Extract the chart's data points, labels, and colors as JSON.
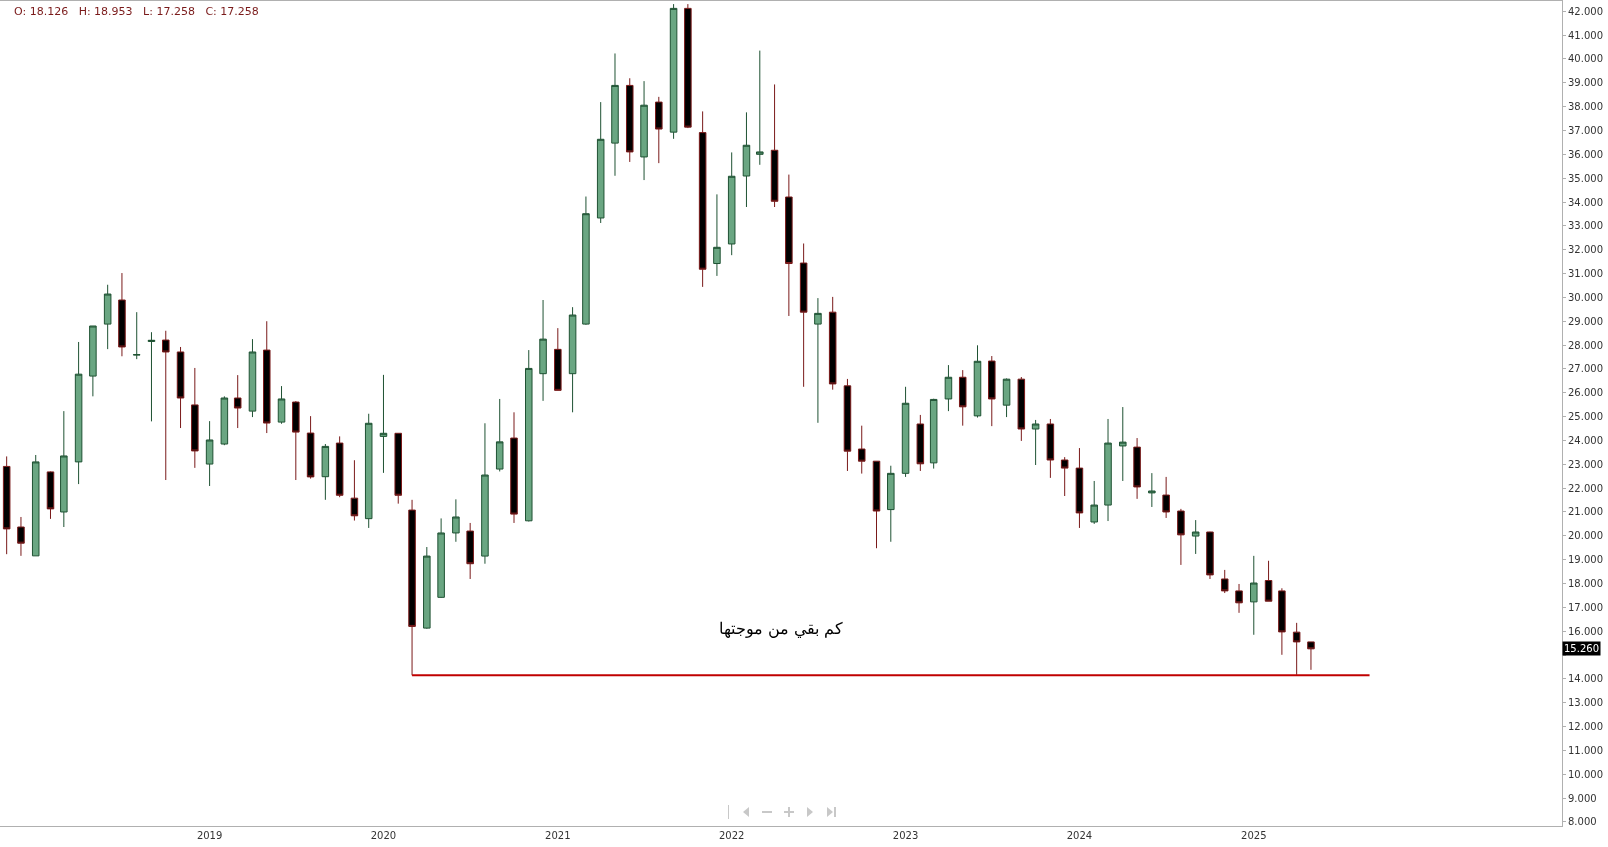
{
  "chart_data": {
    "type": "candlestick",
    "x": [
      "2017-11",
      "2017-12",
      "2018-01",
      "2018-02",
      "2018-03",
      "2018-04",
      "2018-05",
      "2018-06",
      "2018-07",
      "2018-08",
      "2018-09",
      "2018-10",
      "2018-11",
      "2018-12",
      "2019-01",
      "2019-02",
      "2019-03",
      "2019-04",
      "2019-05",
      "2019-06",
      "2019-07",
      "2019-08",
      "2019-09",
      "2019-10",
      "2019-11",
      "2019-12",
      "2020-01",
      "2020-02",
      "2020-03",
      "2020-04",
      "2020-05",
      "2020-06",
      "2020-07",
      "2020-08",
      "2020-09",
      "2020-10",
      "2020-11",
      "2020-12",
      "2021-01",
      "2021-02",
      "2021-03",
      "2021-04",
      "2021-05",
      "2021-06",
      "2021-07",
      "2021-08",
      "2021-09",
      "2021-10",
      "2021-11",
      "2021-12",
      "2022-01",
      "2022-02",
      "2022-03",
      "2022-04",
      "2022-05",
      "2022-06",
      "2022-07",
      "2022-08",
      "2022-09",
      "2022-10",
      "2022-11",
      "2022-12",
      "2023-01",
      "2023-02",
      "2023-03",
      "2023-04",
      "2023-05",
      "2023-06",
      "2023-07",
      "2023-08",
      "2023-09",
      "2023-10",
      "2023-11",
      "2023-12",
      "2024-01",
      "2024-02",
      "2024-03",
      "2024-04",
      "2024-05",
      "2024-06",
      "2024-07",
      "2024-08",
      "2024-09",
      "2024-10",
      "2024-11",
      "2024-12",
      "2025-01",
      "2025-02",
      "2025-03",
      "2025-04",
      "2025-05"
    ],
    "ohlc": [
      [
        22.91,
        23.33,
        19.23,
        20.29
      ],
      [
        20.37,
        20.79,
        19.16,
        19.69
      ],
      [
        19.16,
        23.39,
        19.16,
        23.1
      ],
      [
        22.68,
        22.7,
        20.71,
        21.13
      ],
      [
        21.0,
        25.23,
        20.37,
        23.35
      ],
      [
        23.1,
        28.13,
        22.17,
        26.78
      ],
      [
        26.7,
        28.8,
        25.85,
        28.8
      ],
      [
        28.88,
        30.53,
        27.83,
        30.14
      ],
      [
        29.89,
        31.02,
        27.53,
        27.92
      ],
      [
        27.58,
        29.38,
        27.41,
        27.6
      ],
      [
        28.15,
        28.54,
        24.8,
        28.2
      ],
      [
        28.21,
        28.6,
        22.34,
        27.71
      ],
      [
        27.71,
        27.92,
        24.52,
        25.78
      ],
      [
        25.49,
        27.04,
        22.85,
        23.56
      ],
      [
        23.01,
        24.81,
        22.09,
        24.02
      ],
      [
        23.85,
        25.85,
        23.8,
        25.78
      ],
      [
        25.78,
        26.74,
        24.52,
        25.36
      ],
      [
        25.23,
        28.25,
        24.98,
        27.71
      ],
      [
        27.79,
        29.0,
        24.31,
        24.73
      ],
      [
        24.77,
        26.28,
        24.7,
        25.74
      ],
      [
        25.61,
        25.65,
        22.34,
        24.35
      ],
      [
        24.31,
        25.02,
        22.4,
        22.47
      ],
      [
        22.48,
        23.85,
        21.51,
        23.75
      ],
      [
        23.89,
        24.17,
        21.62,
        21.7
      ],
      [
        21.58,
        23.17,
        20.64,
        20.84
      ],
      [
        20.72,
        25.12,
        20.33,
        24.72
      ],
      [
        24.17,
        26.75,
        22.64,
        24.3
      ],
      [
        24.3,
        24.3,
        21.35,
        21.7
      ],
      [
        21.08,
        21.51,
        14.15,
        16.2
      ],
      [
        16.13,
        19.53,
        16.1,
        19.15
      ],
      [
        17.42,
        20.73,
        17.4,
        20.12
      ],
      [
        20.12,
        21.53,
        19.75,
        20.79
      ],
      [
        20.2,
        20.54,
        18.19,
        18.83
      ],
      [
        19.15,
        24.72,
        18.83,
        22.55
      ],
      [
        22.8,
        25.74,
        22.7,
        23.94
      ],
      [
        24.1,
        25.18,
        20.54,
        20.91
      ],
      [
        20.63,
        27.79,
        20.6,
        27.02
      ],
      [
        26.8,
        29.89,
        25.66,
        28.25
      ],
      [
        27.82,
        28.71,
        26.1,
        26.1
      ],
      [
        26.8,
        29.59,
        25.18,
        29.26
      ],
      [
        28.88,
        34.23,
        28.85,
        33.51
      ],
      [
        33.33,
        38.19,
        33.12,
        36.63
      ],
      [
        36.47,
        40.23,
        35.1,
        38.89
      ],
      [
        38.89,
        39.19,
        35.68,
        36.1
      ],
      [
        35.89,
        39.07,
        34.92,
        38.06
      ],
      [
        38.19,
        38.41,
        35.63,
        37.06
      ],
      [
        36.93,
        42.3,
        36.65,
        42.12
      ],
      [
        42.12,
        42.3,
        37.1,
        37.14
      ],
      [
        36.91,
        37.8,
        30.44,
        31.18
      ],
      [
        31.42,
        34.32,
        30.9,
        32.1
      ],
      [
        32.24,
        36.08,
        31.77,
        35.08
      ],
      [
        35.09,
        37.76,
        33.79,
        36.38
      ],
      [
        36.0,
        40.35,
        35.56,
        36.1
      ],
      [
        36.17,
        38.93,
        33.79,
        34.03
      ],
      [
        34.21,
        35.15,
        29.22,
        31.42
      ],
      [
        31.44,
        32.26,
        26.25,
        29.38
      ],
      [
        28.88,
        29.97,
        24.74,
        29.33
      ],
      [
        29.38,
        30.02,
        26.13,
        26.37
      ],
      [
        26.29,
        26.58,
        22.72,
        23.55
      ],
      [
        23.64,
        24.62,
        22.61,
        23.13
      ],
      [
        23.13,
        23.13,
        19.48,
        21.04
      ],
      [
        21.1,
        22.94,
        19.75,
        22.62
      ],
      [
        22.62,
        26.25,
        22.47,
        25.56
      ],
      [
        24.69,
        25.07,
        22.72,
        23.02
      ],
      [
        23.06,
        25.75,
        22.82,
        25.72
      ],
      [
        25.74,
        27.16,
        25.23,
        26.65
      ],
      [
        26.65,
        26.95,
        24.62,
        25.41
      ],
      [
        25.03,
        27.99,
        24.96,
        27.32
      ],
      [
        27.33,
        27.54,
        24.6,
        25.74
      ],
      [
        25.48,
        26.6,
        24.98,
        26.57
      ],
      [
        26.57,
        26.66,
        23.98,
        24.48
      ],
      [
        24.48,
        24.86,
        22.97,
        24.69
      ],
      [
        24.69,
        24.9,
        22.43,
        23.18
      ],
      [
        23.18,
        23.3,
        21.67,
        22.84
      ],
      [
        22.84,
        23.68,
        20.33,
        20.96
      ],
      [
        20.58,
        22.3,
        20.5,
        21.29
      ],
      [
        21.29,
        24.9,
        20.62,
        23.89
      ],
      [
        23.77,
        25.4,
        22.3,
        23.93
      ],
      [
        23.72,
        24.1,
        21.55,
        22.05
      ],
      [
        21.8,
        22.63,
        21.21,
        21.88
      ],
      [
        21.71,
        22.47,
        20.75,
        21.0
      ],
      [
        21.04,
        21.13,
        18.78,
        20.04
      ],
      [
        19.99,
        20.66,
        19.24,
        20.16
      ],
      [
        20.16,
        20.17,
        18.19,
        18.36
      ],
      [
        18.19,
        18.57,
        17.6,
        17.69
      ],
      [
        17.69,
        17.98,
        16.77,
        17.19
      ],
      [
        17.23,
        19.16,
        15.85,
        18.02
      ],
      [
        18.126,
        18.953,
        17.258,
        17.258
      ],
      [
        17.69,
        17.8,
        15.01,
        15.97
      ],
      [
        15.96,
        16.35,
        14.17,
        15.55
      ],
      [
        15.55,
        15.55,
        14.38,
        15.26
      ]
    ],
    "series": [
      {
        "type": "line",
        "x": [
          "2020-03",
          "2025-09"
        ],
        "values": [
          14.15,
          14.15
        ],
        "color": "#c00000"
      }
    ],
    "annotations": [
      "O: 18.126   H: 18.953   L: 17.258   C: 17.258",
      "كم بقي من موجتها",
      "15.260"
    ],
    "xlim": [
      "2017-10-18",
      "2026-10-10"
    ],
    "xticks": [
      "2019",
      "2020",
      "2021",
      "2022",
      "2023",
      "2024",
      "2025"
    ],
    "ylim": [
      7.83,
      42.43
    ],
    "yticks": [
      {
        "value": 8,
        "label": "8.000"
      },
      {
        "value": 9,
        "label": "9.000"
      },
      {
        "value": 10,
        "label": "10.000"
      },
      {
        "value": 11,
        "label": "11.000"
      },
      {
        "value": 12,
        "label": "12.000"
      },
      {
        "value": 13,
        "label": "13.000"
      },
      {
        "value": 14,
        "label": "14.000"
      },
      {
        "value": 15,
        "label": null
      },
      {
        "value": 16,
        "label": "16.000"
      },
      {
        "value": 17,
        "label": "17.000"
      },
      {
        "value": 18,
        "label": "18.000"
      },
      {
        "value": 19,
        "label": "19.000"
      },
      {
        "value": 20,
        "label": "20.000"
      },
      {
        "value": 21,
        "label": "21.000"
      },
      {
        "value": 22,
        "label": "22.000"
      },
      {
        "value": 23,
        "label": "23.000"
      },
      {
        "value": 24,
        "label": "24.000"
      },
      {
        "value": 25,
        "label": "25.000"
      },
      {
        "value": 26,
        "label": "26.000"
      },
      {
        "value": 27,
        "label": "27.000"
      },
      {
        "value": 28,
        "label": "28.000"
      },
      {
        "value": 29,
        "label": "29.000"
      },
      {
        "value": 30,
        "label": "30.000"
      },
      {
        "value": 31,
        "label": "31.000"
      },
      {
        "value": 32,
        "label": "32.000"
      },
      {
        "value": 33,
        "label": "33.000"
      },
      {
        "value": 34,
        "label": "34.000"
      },
      {
        "value": 35,
        "label": "35.000"
      },
      {
        "value": 36,
        "label": "36.000"
      },
      {
        "value": 37,
        "label": "37.000"
      },
      {
        "value": 38,
        "label": "38.000"
      },
      {
        "value": 39,
        "label": "39.000"
      },
      {
        "value": 40,
        "label": "40.000"
      },
      {
        "value": 41,
        "label": "41.000"
      },
      {
        "value": 42,
        "label": "42.000"
      }
    ],
    "grid": false
  }
}
